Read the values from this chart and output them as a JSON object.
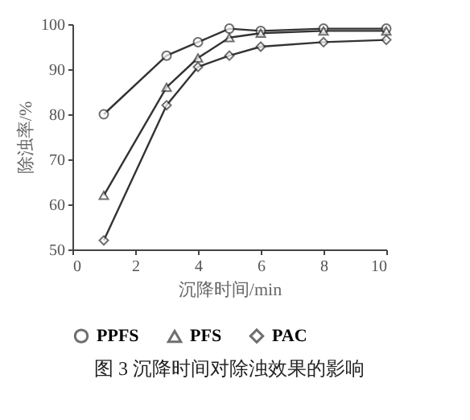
{
  "chart_data": {
    "type": "line",
    "title": "图 3  沉降时间对除浊效果的影响",
    "xlabel": "沉降时间/min",
    "ylabel": "除浊率/%",
    "x": [
      1,
      3,
      4,
      5,
      6,
      8,
      10
    ],
    "series": [
      {
        "name": "PPFS",
        "color": "#333333",
        "marker": "circle",
        "values": [
          80,
          93,
          96,
          99,
          98.5,
          99,
          99
        ]
      },
      {
        "name": "PFS",
        "color": "#333333",
        "marker": "triangle",
        "values": [
          62,
          86,
          92.5,
          97,
          98,
          98.5,
          98.5
        ]
      },
      {
        "name": "PAC",
        "color": "#333333",
        "marker": "diamond",
        "values": [
          52,
          82,
          90.5,
          93,
          95,
          96,
          96.5
        ]
      }
    ],
    "xlim": [
      0,
      10
    ],
    "xticks": [
      0,
      2,
      4,
      6,
      8,
      10
    ],
    "ylim": [
      50,
      100
    ],
    "yticks": [
      50,
      60,
      70,
      80,
      90,
      100
    ],
    "grid": false,
    "legend": "bottom",
    "line_style": "solid"
  }
}
